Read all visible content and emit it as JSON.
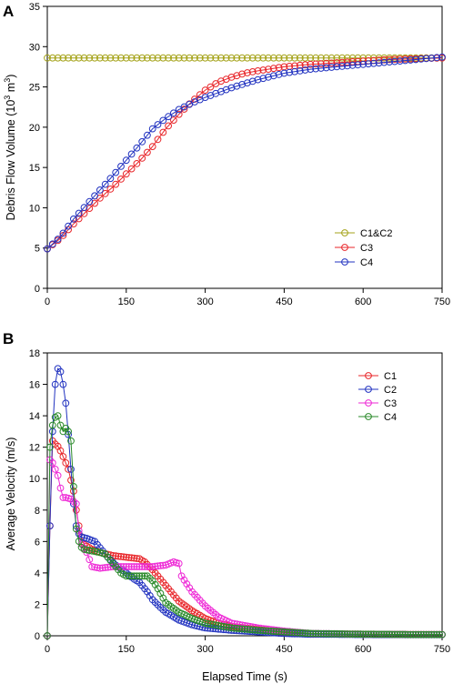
{
  "chart_data": [
    {
      "type": "line",
      "panel_label": "A",
      "ylabel": "Debris Flow Volume (10³ m³)",
      "ylabel_main": "Debris Flow Volume (10",
      "ylabel_sup1": "3",
      "ylabel_mid": " m",
      "ylabel_sup2": "3",
      "ylabel_end": ")",
      "xlabel": "",
      "xlim": [
        0,
        750
      ],
      "ylim": [
        0,
        35
      ],
      "xticks": [
        0,
        150,
        300,
        450,
        600,
        750
      ],
      "yticks": [
        0,
        5,
        10,
        15,
        20,
        25,
        30,
        35
      ],
      "grid": false,
      "legend_position": "lower-right",
      "marker": "open-circle",
      "series": [
        {
          "name": "C1&C2",
          "color": "#a5a31a",
          "points": [
            [
              0,
              28.6
            ],
            [
              750,
              28.6
            ]
          ]
        },
        {
          "name": "C3",
          "color": "#e8262a",
          "points": [
            [
              0,
              4.9
            ],
            [
              25,
              6.2
            ],
            [
              50,
              8.0
            ],
            [
              75,
              9.6
            ],
            [
              100,
              11.2
            ],
            [
              125,
              12.6
            ],
            [
              150,
              14.2
            ],
            [
              175,
              15.8
            ],
            [
              200,
              17.6
            ],
            [
              225,
              19.8
            ],
            [
              250,
              21.6
            ],
            [
              275,
              23.2
            ],
            [
              300,
              24.6
            ],
            [
              325,
              25.6
            ],
            [
              350,
              26.2
            ],
            [
              375,
              26.7
            ],
            [
              400,
              27.0
            ],
            [
              450,
              27.5
            ],
            [
              500,
              27.8
            ],
            [
              550,
              28.0
            ],
            [
              600,
              28.2
            ],
            [
              650,
              28.4
            ],
            [
              700,
              28.5
            ],
            [
              750,
              28.6
            ]
          ]
        },
        {
          "name": "C4",
          "color": "#2233c0",
          "points": [
            [
              0,
              4.9
            ],
            [
              25,
              6.4
            ],
            [
              50,
              8.6
            ],
            [
              75,
              10.4
            ],
            [
              100,
              12.2
            ],
            [
              125,
              14.0
            ],
            [
              150,
              15.9
            ],
            [
              175,
              17.8
            ],
            [
              200,
              19.8
            ],
            [
              225,
              21.1
            ],
            [
              250,
              22.2
            ],
            [
              275,
              23.0
            ],
            [
              300,
              23.7
            ],
            [
              325,
              24.3
            ],
            [
              350,
              24.9
            ],
            [
              375,
              25.4
            ],
            [
              400,
              25.9
            ],
            [
              450,
              26.7
            ],
            [
              500,
              27.2
            ],
            [
              550,
              27.5
            ],
            [
              600,
              27.8
            ],
            [
              650,
              28.1
            ],
            [
              700,
              28.4
            ],
            [
              750,
              28.7
            ]
          ]
        }
      ]
    },
    {
      "type": "line",
      "panel_label": "B",
      "ylabel": "Average Velocity (m/s)",
      "xlabel": "Elapsed Time (s)",
      "xlim": [
        0,
        750
      ],
      "ylim": [
        0,
        18
      ],
      "xticks": [
        0,
        150,
        300,
        450,
        600,
        750
      ],
      "yticks": [
        0,
        2,
        4,
        6,
        8,
        10,
        12,
        14,
        16,
        18
      ],
      "grid": false,
      "legend_position": "top-right",
      "marker": "open-circle",
      "series": [
        {
          "name": "C1",
          "color": "#e8262a",
          "points": [
            [
              0,
              0
            ],
            [
              5,
              7.0
            ],
            [
              10,
              12.4
            ],
            [
              15,
              12.2
            ],
            [
              22,
              12.0
            ],
            [
              30,
              11.4
            ],
            [
              40,
              10.6
            ],
            [
              50,
              9.2
            ],
            [
              55,
              8.0
            ],
            [
              62,
              6.6
            ],
            [
              70,
              5.8
            ],
            [
              85,
              5.5
            ],
            [
              100,
              5.3
            ],
            [
              125,
              5.1
            ],
            [
              150,
              5.0
            ],
            [
              175,
              4.9
            ],
            [
              185,
              4.7
            ],
            [
              200,
              4.2
            ],
            [
              225,
              3.2
            ],
            [
              250,
              2.2
            ],
            [
              275,
              1.6
            ],
            [
              300,
              1.1
            ],
            [
              325,
              0.8
            ],
            [
              350,
              0.6
            ],
            [
              400,
              0.4
            ],
            [
              450,
              0.2
            ],
            [
              500,
              0.12
            ],
            [
              600,
              0.1
            ],
            [
              700,
              0.08
            ],
            [
              750,
              0.08
            ]
          ]
        },
        {
          "name": "C2",
          "color": "#2233c0",
          "points": [
            [
              0,
              0
            ],
            [
              5,
              7.0
            ],
            [
              10,
              13.0
            ],
            [
              15,
              16.0
            ],
            [
              20,
              17.0
            ],
            [
              25,
              16.8
            ],
            [
              30,
              16.0
            ],
            [
              35,
              14.8
            ],
            [
              40,
              12.8
            ],
            [
              45,
              10.6
            ],
            [
              50,
              8.4
            ],
            [
              55,
              7.0
            ],
            [
              62,
              6.3
            ],
            [
              75,
              6.2
            ],
            [
              90,
              6.0
            ],
            [
              100,
              5.6
            ],
            [
              115,
              5.0
            ],
            [
              130,
              4.5
            ],
            [
              150,
              4.0
            ],
            [
              165,
              3.6
            ],
            [
              175,
              3.4
            ],
            [
              190,
              2.8
            ],
            [
              200,
              2.3
            ],
            [
              215,
              1.8
            ],
            [
              225,
              1.5
            ],
            [
              250,
              1.0
            ],
            [
              275,
              0.7
            ],
            [
              300,
              0.5
            ],
            [
              350,
              0.35
            ],
            [
              400,
              0.25
            ],
            [
              450,
              0.15
            ],
            [
              500,
              0.1
            ],
            [
              600,
              0.08
            ],
            [
              700,
              0.07
            ],
            [
              750,
              0.07
            ]
          ]
        },
        {
          "name": "C3",
          "color": "#ee2ad6",
          "points": [
            [
              0,
              0
            ],
            [
              5,
              11.2
            ],
            [
              10,
              11.0
            ],
            [
              15,
              10.6
            ],
            [
              20,
              10.2
            ],
            [
              25,
              9.4
            ],
            [
              30,
              8.8
            ],
            [
              35,
              8.8
            ],
            [
              45,
              8.7
            ],
            [
              55,
              8.4
            ],
            [
              62,
              6.0
            ],
            [
              75,
              5.3
            ],
            [
              85,
              4.4
            ],
            [
              100,
              4.3
            ],
            [
              125,
              4.4
            ],
            [
              150,
              4.4
            ],
            [
              175,
              4.4
            ],
            [
              200,
              4.4
            ],
            [
              225,
              4.5
            ],
            [
              240,
              4.7
            ],
            [
              250,
              4.6
            ],
            [
              255,
              3.8
            ],
            [
              265,
              3.3
            ],
            [
              275,
              2.8
            ],
            [
              300,
              1.9
            ],
            [
              325,
              1.2
            ],
            [
              350,
              0.8
            ],
            [
              400,
              0.5
            ],
            [
              450,
              0.3
            ],
            [
              500,
              0.15
            ],
            [
              600,
              0.1
            ],
            [
              700,
              0.08
            ],
            [
              750,
              0.08
            ]
          ]
        },
        {
          "name": "C4",
          "color": "#2a8a2a",
          "points": [
            [
              0,
              0
            ],
            [
              5,
              12.0
            ],
            [
              10,
              13.4
            ],
            [
              15,
              13.9
            ],
            [
              20,
              14.0
            ],
            [
              25,
              13.4
            ],
            [
              30,
              13.0
            ],
            [
              35,
              13.2
            ],
            [
              40,
              13.0
            ],
            [
              45,
              12.4
            ],
            [
              50,
              9.5
            ],
            [
              55,
              6.8
            ],
            [
              62,
              5.7
            ],
            [
              70,
              5.5
            ],
            [
              85,
              5.4
            ],
            [
              100,
              5.3
            ],
            [
              110,
              5.2
            ],
            [
              125,
              4.6
            ],
            [
              140,
              4.0
            ],
            [
              150,
              3.8
            ],
            [
              160,
              3.8
            ],
            [
              175,
              3.8
            ],
            [
              190,
              3.8
            ],
            [
              200,
              3.5
            ],
            [
              210,
              3.0
            ],
            [
              225,
              2.1
            ],
            [
              250,
              1.5
            ],
            [
              275,
              1.1
            ],
            [
              300,
              0.8
            ],
            [
              350,
              0.5
            ],
            [
              400,
              0.35
            ],
            [
              450,
              0.25
            ],
            [
              500,
              0.15
            ],
            [
              600,
              0.1
            ],
            [
              700,
              0.08
            ],
            [
              750,
              0.08
            ]
          ]
        }
      ]
    }
  ]
}
